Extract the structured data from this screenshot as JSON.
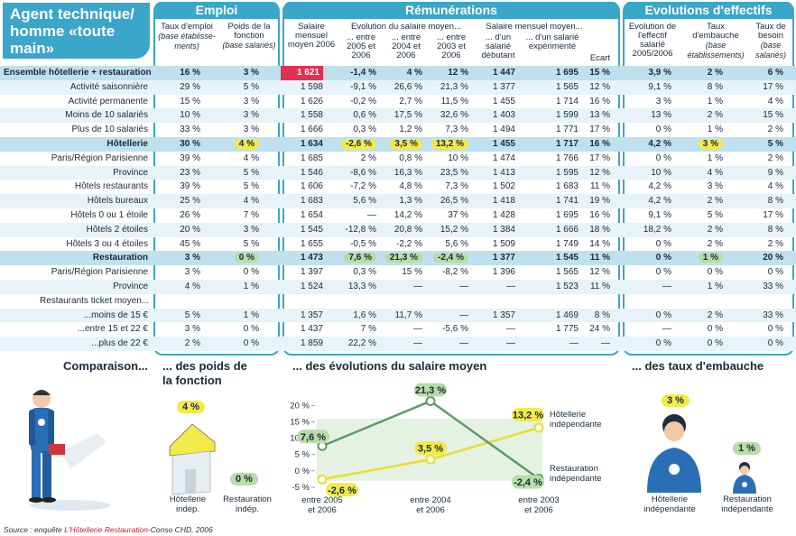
{
  "title": "Agent technique/ homme «toute main»",
  "sections": {
    "emploi": "Emploi",
    "remunerations": "Rémunérations",
    "evolutions": "Evolutions d'effectifs"
  },
  "columns": {
    "taux_emploi": "Taux d'emploi",
    "taux_emploi_note": "(base établisse- ments)",
    "poids": "Poids de la fonction",
    "poids_note": "(base salariés)",
    "salaire_moyen": "Salaire mensuel moyen 2006",
    "evol_group": "Evolution du salaire moyen...",
    "evol1": "... entre 2005 et 2006",
    "evol2": "... entre 2004 et 2006",
    "evol3": "... entre 2003 et 2006",
    "sal_group": "Salaire mensuel moyen...",
    "sal_debut": "... d'un salarié débutant",
    "sal_exp": "... d'un salarié expérimenté",
    "ecart": "Ecart",
    "evol_effectif": "Evolution de l'effectif salarié 2005/2006",
    "taux_embauche": "Taux d'embauche",
    "taux_embauche_note": "(base établissements)",
    "taux_besoin": "Taux de besoin",
    "taux_besoin_note": "(base salariés)"
  },
  "rows": [
    {
      "label": "Ensemble hôtellerie + restauration",
      "style": "total",
      "v": [
        "16 %",
        "3 %",
        "1 621",
        "-1,4 %",
        "4 %",
        "12 %",
        "1 447",
        "1 695",
        "15 %",
        "3,9 %",
        "2 %",
        "6 %"
      ]
    },
    {
      "label": "Activité saisonnière",
      "v": [
        "29 %",
        "5 %",
        "1 598",
        "-9,1 %",
        "26,6 %",
        "21,3 %",
        "1 377",
        "1 565",
        "12 %",
        "9,1 %",
        "8 %",
        "17 %"
      ]
    },
    {
      "label": "Activité permanente",
      "v": [
        "15 %",
        "3 %",
        "1 626",
        "-0,2 %",
        "2,7 %",
        "11,5 %",
        "1 455",
        "1 714",
        "16 %",
        "3 %",
        "1 %",
        "4 %"
      ]
    },
    {
      "label": "Moins de 10 salariés",
      "v": [
        "10 %",
        "3 %",
        "1 558",
        "0,6 %",
        "17,5 %",
        "32,6 %",
        "1 403",
        "1 599",
        "13 %",
        "13 %",
        "2 %",
        "15 %"
      ]
    },
    {
      "label": "Plus de 10 salariés",
      "v": [
        "33 %",
        "3 %",
        "1 666",
        "0,3 %",
        "1,2 %",
        "7,3 %",
        "1 494",
        "1 771",
        "17 %",
        "0 %",
        "1 %",
        "2 %"
      ]
    },
    {
      "label": "Hôtellerie",
      "style": "hl",
      "v": [
        "30 %",
        "4 %",
        "1 634",
        "-2,6 %",
        "3,5 %",
        "13,2 %",
        "1 455",
        "1 717",
        "16 %",
        "4,2 %",
        "3 %",
        "5 %"
      ]
    },
    {
      "label": "Paris/Région Parisienne",
      "v": [
        "39 %",
        "4 %",
        "1 685",
        "2 %",
        "0,8 %",
        "10 %",
        "1 474",
        "1 766",
        "17 %",
        "0 %",
        "1 %",
        "2 %"
      ]
    },
    {
      "label": "Province",
      "v": [
        "23 %",
        "5 %",
        "1 546",
        "-8,6 %",
        "16,3 %",
        "23,5 %",
        "1 413",
        "1 595",
        "12 %",
        "10 %",
        "4 %",
        "9 %"
      ]
    },
    {
      "label": "Hôtels restaurants",
      "v": [
        "39 %",
        "5 %",
        "1 606",
        "-7,2 %",
        "4,8 %",
        "7,3 %",
        "1 502",
        "1 683",
        "11 %",
        "4,2 %",
        "3 %",
        "4 %"
      ]
    },
    {
      "label": "Hôtels bureaux",
      "v": [
        "25 %",
        "4 %",
        "1 683",
        "5,6 %",
        "1,3 %",
        "26,5 %",
        "1 418",
        "1 741",
        "19 %",
        "4,2 %",
        "2 %",
        "8 %"
      ]
    },
    {
      "label": "Hôtels 0 ou 1 étoile",
      "v": [
        "26 %",
        "7 %",
        "1 654",
        "—",
        "14,2 %",
        "37 %",
        "1 428",
        "1 695",
        "16 %",
        "9,1 %",
        "5 %",
        "17 %"
      ]
    },
    {
      "label": "Hôtels 2 étoiles",
      "v": [
        "20 %",
        "3 %",
        "1 545",
        "-12,8 %",
        "20,8 %",
        "15,2 %",
        "1 384",
        "1 666",
        "18 %",
        "18,2 %",
        "2 %",
        "8 %"
      ]
    },
    {
      "label": "Hôtels 3 ou 4 étoiles",
      "v": [
        "45 %",
        "5 %",
        "1 655",
        "-0,5 %",
        "-2,2 %",
        "5,6 %",
        "1 509",
        "1 749",
        "14 %",
        "0 %",
        "2 %",
        "2 %"
      ]
    },
    {
      "label": "Restauration",
      "style": "hl",
      "v": [
        "3 %",
        "0 %",
        "1 473",
        "7,6 %",
        "21,3 %",
        "-2,4 %",
        "1 377",
        "1 545",
        "11 %",
        "0 %",
        "1 %",
        "20 %"
      ]
    },
    {
      "label": "Paris/Région Parisienne",
      "v": [
        "3 %",
        "0 %",
        "1 397",
        "0,3 %",
        "15 %",
        "-8,2 %",
        "1 396",
        "1 565",
        "12 %",
        "0 %",
        "0 %",
        "0 %"
      ]
    },
    {
      "label": "Province",
      "v": [
        "4 %",
        "1 %",
        "1 524",
        "13,3 %",
        "—",
        "—",
        "—",
        "1 523",
        "11 %",
        "—",
        "1 %",
        "33 %"
      ]
    },
    {
      "label": "Restaurants ticket moyen...",
      "style": "plain",
      "v": [
        "",
        "",
        "",
        "",
        "",
        "",
        "",
        "",
        "",
        "",
        "",
        ""
      ]
    },
    {
      "label": "...moins de 15 €",
      "v": [
        "5 %",
        "1 %",
        "1 357",
        "1,6 %",
        "11,7 %",
        "—",
        "1 357",
        "1 469",
        "8 %",
        "0 %",
        "2 %",
        "33 %"
      ]
    },
    {
      "label": "...entre 15 et 22 €",
      "v": [
        "3 %",
        "0 %",
        "1 437",
        "7 %",
        "—",
        "-5,6 %",
        "—",
        "1 775",
        "24 %",
        "—",
        "0 %",
        "0 %"
      ]
    },
    {
      "label": "...plus de 22 €",
      "v": [
        "2 %",
        "0 %",
        "1 859",
        "22,2 %",
        "—",
        "—",
        "—",
        "—",
        "—",
        "0 %",
        "0 %",
        "0 %"
      ]
    }
  ],
  "bottom": {
    "comparaison": "Comparaison...",
    "poids_title": "... des poids de la fonction",
    "poids_hotel_value": "4 %",
    "poids_resto_value": "0 %",
    "poids_hotel_label": "Hôtellerie indép.",
    "poids_resto_label": "Restauration indép.",
    "evol_title": "... des évolutions du salaire moyen",
    "embauche_title": "... des taux d'embauche",
    "embauche_hotel_value": "3 %",
    "embauche_resto_value": "1 %",
    "embauche_hotel_label": "Hôtellerie indépendante",
    "embauche_resto_label": "Restauration indépendante",
    "source_prefix": "Source : enquête ",
    "source_brand": "L'Hôtellerie Restauration",
    "source_suffix": "-Conso CHD, 2006"
  },
  "chart_data": {
    "type": "line",
    "title": "... des évolutions du salaire moyen",
    "categories": [
      "entre 2005 et 2006",
      "entre 2004 et 2006",
      "entre 2003 et 2006"
    ],
    "series": [
      {
        "name": "Hôtellerie indépendante",
        "values": [
          -2.6,
          3.5,
          13.2
        ],
        "color": "#e8df2a"
      },
      {
        "name": "Restauration indépendante",
        "values": [
          7.6,
          21.3,
          -2.4
        ],
        "color": "#5d9a6a"
      }
    ],
    "value_labels": {
      "Hôtellerie indépendante": [
        "-2,6 %",
        "3,5 %",
        "13,2 %"
      ],
      "Restauration indépendante": [
        "7,6 %",
        "21,3 %",
        "-2,4 %"
      ]
    },
    "yticks": [
      "20 %",
      "15 %",
      "10 %",
      "5 %",
      "0 %",
      "-5 %"
    ],
    "ytick_values": [
      20,
      15,
      10,
      5,
      0,
      -5
    ],
    "ylim": [
      -5,
      22
    ],
    "xlabel": "",
    "ylabel": "",
    "legend": "right"
  }
}
